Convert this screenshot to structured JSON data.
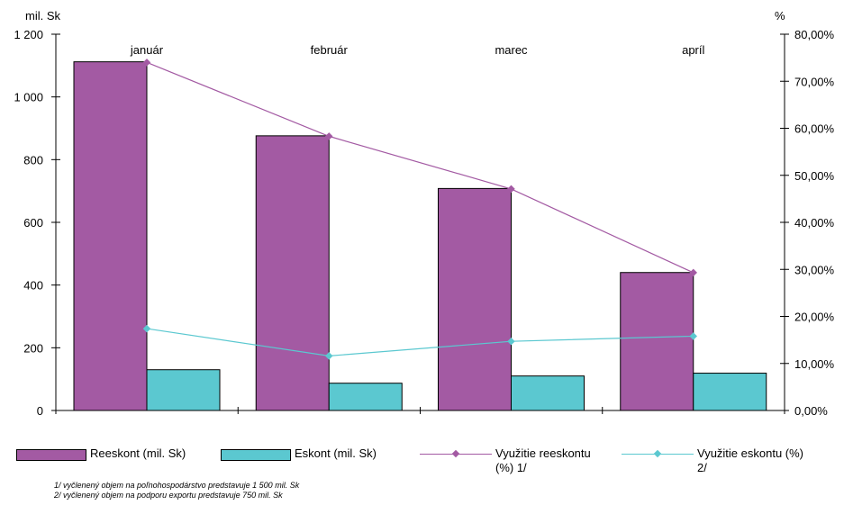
{
  "chart_data": {
    "type": "bar",
    "categories": [
      "január",
      "február",
      "marec",
      "apríl"
    ],
    "left_axis": {
      "unit": "mil. Sk",
      "range": [
        0,
        1200
      ],
      "ticks": [
        "0",
        "200",
        "400",
        "600",
        "800",
        "1 000",
        "1 200"
      ]
    },
    "right_axis": {
      "unit": "%",
      "range": [
        0,
        80
      ],
      "ticks": [
        "0,00%",
        "10,00%",
        "20,00%",
        "30,00%",
        "40,00%",
        "50,00%",
        "60,00%",
        "70,00%",
        "80,00%"
      ]
    },
    "series": [
      {
        "name": "Reeskont (mil. Sk)",
        "type": "bar",
        "axis": "left",
        "color": "#a35aa3",
        "values": [
          1112,
          876,
          708,
          440
        ]
      },
      {
        "name": "Eskont (mil. Sk)",
        "type": "bar",
        "axis": "left",
        "color": "#5bc8d0",
        "values": [
          130,
          87,
          110,
          119
        ]
      },
      {
        "name": "Využitie reeskontu (%) 1/",
        "type": "line",
        "axis": "right",
        "color": "#a35aa3",
        "values": [
          74.0,
          58.3,
          47.1,
          29.3
        ]
      },
      {
        "name": "Využitie eskontu (%) 2/",
        "type": "line",
        "axis": "right",
        "color": "#5bc8d0",
        "values": [
          17.4,
          11.6,
          14.7,
          15.8
        ]
      }
    ],
    "legend_position": "bottom",
    "grid": false
  },
  "legend": {
    "reeskont": "Reeskont (mil. Sk)",
    "eskont": "Eskont (mil. Sk)",
    "vyuzitie_reeskontu": "Využitie reeskontu\n(%) 1/",
    "vyuzitie_eskontu": "Využitie eskontu (%)\n2/"
  },
  "footnotes": {
    "note1": "1/ vyčlenený objem na poľnohospodárstvo predstavuje 1 500 mil. Sk",
    "note2": "2/ vyčlenený objem na podporu exportu predstavuje 750 mil. Sk"
  }
}
